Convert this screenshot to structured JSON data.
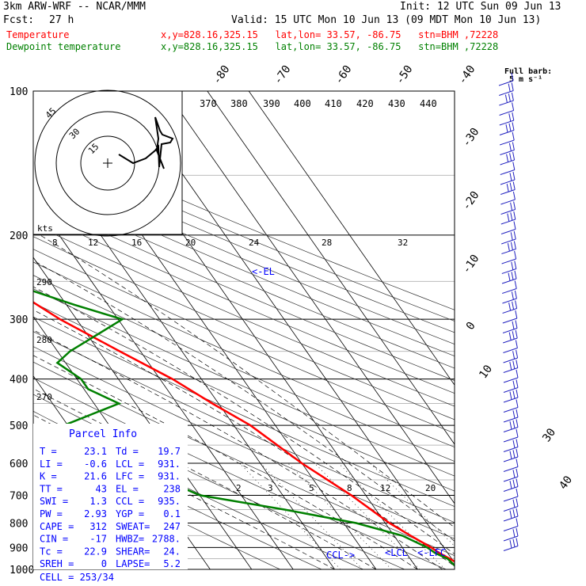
{
  "header": {
    "model": "3km ARW-WRF -- NCAR/MMM",
    "init": "Init: 12 UTC Sun 09 Jun 13",
    "fcst_label": "Fcst:",
    "fcst_hours": "27 h",
    "valid": "Valid: 15 UTC Mon 10 Jun 13 (09 MDT Mon 10 Jun 13)",
    "temp_label": "Temperature",
    "dew_label": "Dewpoint temperature",
    "location": "x,y=828.16,325.15   lat,lon= 33.57, -86.75   stn=BHM ,72228"
  },
  "colors": {
    "temperature": "#ff0000",
    "dewpoint": "#008000",
    "parcel": "#0000ff",
    "barbs": "#2020c0",
    "grid": "#000000"
  },
  "chart_data": {
    "type": "line",
    "subtype": "skew-T log-P sounding",
    "y_scale": "log-pressure",
    "ylim": [
      1000,
      100
    ],
    "pressure_ticks": [
      "100",
      "200",
      "300",
      "400",
      "500",
      "600",
      "700",
      "800",
      "900",
      "1000"
    ],
    "isotherm_labels": [
      "-80",
      "-70",
      "-60",
      "-50",
      "-40",
      "-30",
      "-20",
      "-10",
      "0",
      "10",
      "30",
      "40"
    ],
    "theta_e_labels": [
      "290",
      "280",
      "270"
    ],
    "mixing_ratio_labels": [
      "2",
      "3",
      "5",
      "8",
      "12",
      "20"
    ],
    "series": [
      {
        "name": "Temperature",
        "points": [
          [
            1000,
            23.1
          ],
          [
            975,
            21
          ],
          [
            950,
            19.5
          ],
          [
            925,
            18
          ],
          [
            900,
            17
          ],
          [
            850,
            14
          ],
          [
            800,
            11
          ],
          [
            700,
            6.5
          ],
          [
            600,
            0
          ],
          [
            500,
            -6
          ],
          [
            450,
            -11.5
          ],
          [
            400,
            -17
          ],
          [
            350,
            -25
          ],
          [
            300,
            -34
          ],
          [
            250,
            -42
          ],
          [
            225,
            -48
          ],
          [
            200,
            -55
          ],
          [
            180,
            -57
          ],
          [
            150,
            -60
          ],
          [
            130,
            -60
          ],
          [
            115,
            -58
          ],
          [
            100,
            -56
          ]
        ]
      },
      {
        "name": "Dewpoint temperature",
        "points": [
          [
            1000,
            19.7
          ],
          [
            975,
            19.5
          ],
          [
            950,
            19
          ],
          [
            925,
            17
          ],
          [
            900,
            16
          ],
          [
            850,
            12
          ],
          [
            800,
            3
          ],
          [
            750,
            -12
          ],
          [
            700,
            -30
          ],
          [
            650,
            -36
          ],
          [
            600,
            -34
          ],
          [
            550,
            -43
          ],
          [
            500,
            -51
          ],
          [
            450,
            -34
          ],
          [
            420,
            -39
          ],
          [
            400,
            -39
          ],
          [
            370,
            -42
          ],
          [
            350,
            -37
          ],
          [
            300,
            -19
          ],
          [
            280,
            -28
          ],
          [
            250,
            -41
          ],
          [
            225,
            -52
          ],
          [
            210,
            -50
          ],
          [
            200,
            -53
          ],
          [
            175,
            -62
          ],
          [
            150,
            -67
          ],
          [
            125,
            -70
          ],
          [
            110,
            -70
          ],
          [
            100,
            -70
          ]
        ]
      }
    ],
    "annotations": [
      "<-EL",
      "CCL->",
      "<LCL",
      "<-LFC"
    ],
    "wind_barbs_title": "Full barb:",
    "wind_barbs_subtitle": "5 m s⁻¹",
    "hodograph": {
      "speed_unit": "kts",
      "x_ticks": [
        "8",
        "12",
        "16",
        "20",
        "24",
        "28",
        "32"
      ],
      "ring_labels": [
        "45",
        "30",
        "15"
      ],
      "theta_ticks": [
        "370",
        "380",
        "390",
        "400",
        "410",
        "420",
        "430",
        "440"
      ]
    }
  },
  "parcel_info": {
    "title": "Parcel Info",
    "rows": [
      [
        "T  =",
        "23.1",
        "Td =",
        "19.7"
      ],
      [
        "LI =",
        "-0.6",
        "LCL =",
        "931."
      ],
      [
        "K  =",
        "21.6",
        "LFC =",
        "931."
      ],
      [
        "TT =",
        "43",
        "EL =",
        "238"
      ],
      [
        "SWI =",
        "1.3",
        "CCL =",
        "935."
      ],
      [
        "PW =",
        "2.93",
        "YGP =",
        "0.1"
      ],
      [
        "CAPE =",
        "312",
        "SWEAT=",
        "247"
      ],
      [
        "CIN =",
        "-17",
        "HWBZ=",
        "2788."
      ],
      [
        "Tc =",
        "22.9",
        "SHEAR=",
        "24."
      ],
      [
        "SREH =",
        "0",
        "LAPSE=",
        "5.2"
      ]
    ],
    "cell": "CELL = 253/34"
  }
}
